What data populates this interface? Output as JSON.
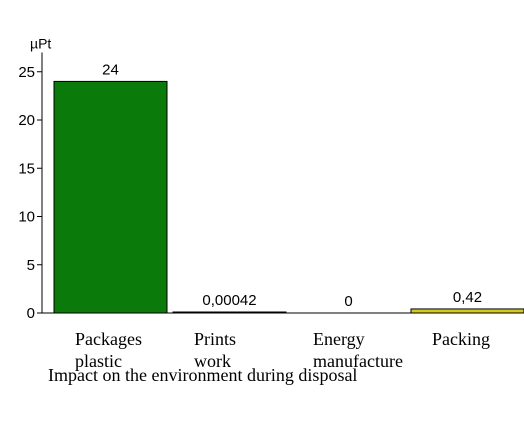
{
  "chart_data": {
    "type": "bar",
    "unit": "µPt",
    "categories": [
      [
        "Packages",
        "plastic"
      ],
      [
        "Prints",
        "work"
      ],
      [
        "Energy",
        "manufacture"
      ],
      [
        "Packing"
      ]
    ],
    "values": [
      24,
      0.00042,
      0,
      0.42
    ],
    "data_labels": [
      "24",
      "0,00042",
      "0",
      "0,42"
    ],
    "bar_colors": [
      "#0a7a0a",
      "#000000",
      "#000000",
      "#d2c81e"
    ],
    "yticks": [
      0,
      5,
      10,
      15,
      20,
      25
    ],
    "ylim": [
      0,
      27
    ],
    "grid": false,
    "legend": "none"
  },
  "caption": "Impact on the environment during disposal"
}
